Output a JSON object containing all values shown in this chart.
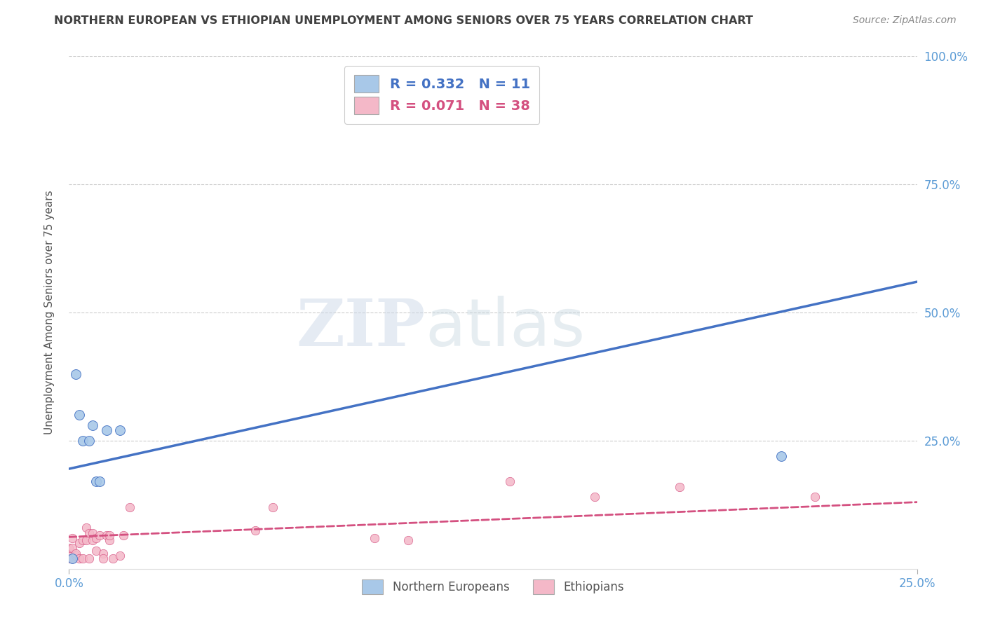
{
  "title": "NORTHERN EUROPEAN VS ETHIOPIAN UNEMPLOYMENT AMONG SENIORS OVER 75 YEARS CORRELATION CHART",
  "source": "Source: ZipAtlas.com",
  "ylabel": "Unemployment Among Seniors over 75 years",
  "xlabel": "",
  "xlim": [
    0.0,
    0.25
  ],
  "ylim": [
    0.0,
    1.0
  ],
  "xticks": [
    0.0,
    0.25
  ],
  "xticklabels": [
    "0.0%",
    "25.0%"
  ],
  "yticks_left": [
    0.0,
    0.25,
    0.5,
    0.75,
    1.0
  ],
  "yticklabels_left": [
    "",
    "",
    "",
    "",
    ""
  ],
  "yticks_right": [
    0.0,
    0.25,
    0.5,
    0.75,
    1.0
  ],
  "yticklabels_right": [
    "",
    "25.0%",
    "50.0%",
    "75.0%",
    "100.0%"
  ],
  "ne_blue_x": [
    0.001,
    0.002,
    0.003,
    0.004,
    0.006,
    0.007,
    0.008,
    0.009,
    0.011,
    0.015,
    0.21
  ],
  "ne_blue_y": [
    0.02,
    0.38,
    0.3,
    0.25,
    0.25,
    0.28,
    0.17,
    0.17,
    0.27,
    0.27,
    0.22
  ],
  "eth_pink_x": [
    0.0,
    0.0,
    0.0,
    0.001,
    0.001,
    0.001,
    0.002,
    0.002,
    0.003,
    0.003,
    0.004,
    0.004,
    0.005,
    0.005,
    0.006,
    0.006,
    0.007,
    0.007,
    0.008,
    0.008,
    0.009,
    0.01,
    0.01,
    0.011,
    0.012,
    0.012,
    0.013,
    0.015,
    0.016,
    0.018,
    0.055,
    0.06,
    0.09,
    0.1,
    0.13,
    0.155,
    0.18,
    0.22
  ],
  "eth_pink_y": [
    0.02,
    0.03,
    0.04,
    0.02,
    0.04,
    0.06,
    0.025,
    0.03,
    0.02,
    0.05,
    0.02,
    0.055,
    0.055,
    0.08,
    0.02,
    0.07,
    0.055,
    0.07,
    0.035,
    0.06,
    0.065,
    0.03,
    0.02,
    0.065,
    0.055,
    0.065,
    0.02,
    0.025,
    0.065,
    0.12,
    0.075,
    0.12,
    0.06,
    0.055,
    0.17,
    0.14,
    0.16,
    0.14
  ],
  "ne_line_x0": 0.0,
  "ne_line_y0": 0.195,
  "ne_line_x1": 0.25,
  "ne_line_y1": 0.56,
  "eth_line_x0": 0.0,
  "eth_line_y0": 0.062,
  "eth_line_x1": 0.25,
  "eth_line_y1": 0.13,
  "ne_R": 0.332,
  "ne_N": 11,
  "eth_R": 0.071,
  "eth_N": 38,
  "ne_color": "#a8c8e8",
  "ne_line_color": "#4472c4",
  "eth_color": "#f4b8c8",
  "eth_line_color": "#d45080",
  "ne_marker_size": 100,
  "eth_marker_size": 80,
  "watermark_zip": "ZIP",
  "watermark_atlas": "atlas",
  "background_color": "#ffffff",
  "grid_color": "#cccccc",
  "title_color": "#404040",
  "axis_label_color": "#555555",
  "tick_color_right": "#5b9bd5",
  "tick_color_bottom": "#5b9bd5",
  "legend_text_color": "#4472c4"
}
